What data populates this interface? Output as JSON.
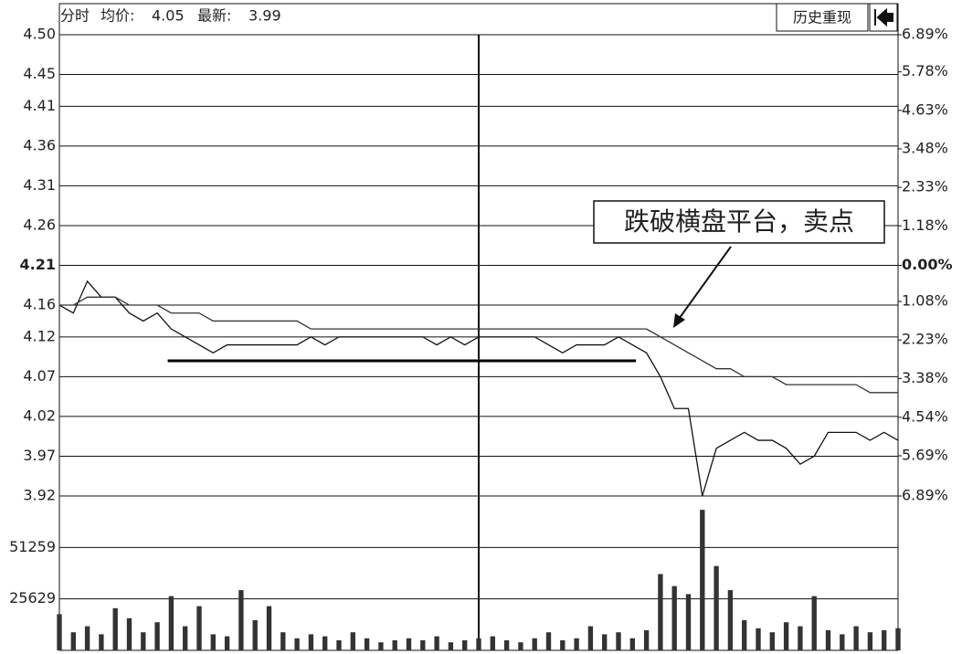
{
  "chart_data": {
    "type": "intraday",
    "title": "分时",
    "avg_label": "均价:",
    "avg": 4.05,
    "last_label": "最新:",
    "last": 3.99,
    "buttons": [
      "历史重现"
    ],
    "annotation": "跌破横盘平台，卖点",
    "ref_price": 4.21,
    "xlim": [
      0,
      240
    ],
    "xticks": [
      120
    ],
    "ylim": [
      3.92,
      4.5
    ],
    "yticks": [
      {
        "value": 4.5,
        "label": "4.50"
      },
      4.45,
      4.41,
      4.36,
      4.31,
      4.26,
      4.21,
      4.16,
      4.12,
      4.07,
      4.02,
      3.97,
      3.92
    ],
    "y2lim": [
      -6.89,
      6.89
    ],
    "y2ticks": [
      {
        "value": 6.89,
        "label": "6.89%"
      },
      {
        "value": 5.78,
        "label": "5.78%"
      },
      {
        "value": 4.63,
        "label": "4.63%"
      },
      {
        "value": 3.48,
        "label": "3.48%"
      },
      {
        "value": 2.33,
        "label": "2.33%"
      },
      {
        "value": 1.18,
        "label": "1.18%"
      },
      {
        "value": 0,
        "label": "0.00%"
      },
      {
        "value": -1.08,
        "label": "1.08%"
      },
      {
        "value": -2.23,
        "label": "2.23%"
      },
      {
        "value": -3.38,
        "label": "3.38%"
      },
      {
        "value": -4.54,
        "label": "4.54%"
      },
      {
        "value": -5.69,
        "label": "5.69%"
      },
      {
        "value": -6.89,
        "label": "6.89%"
      }
    ],
    "x": [
      0,
      4,
      8,
      12,
      16,
      20,
      24,
      28,
      32,
      36,
      40,
      44,
      48,
      52,
      56,
      60,
      64,
      68,
      72,
      76,
      80,
      84,
      88,
      92,
      96,
      100,
      104,
      108,
      112,
      116,
      120,
      124,
      128,
      132,
      136,
      140,
      144,
      148,
      152,
      156,
      160,
      164,
      168,
      172,
      176,
      180,
      184,
      188,
      192,
      196,
      200,
      204,
      208,
      212,
      216,
      220,
      224,
      228,
      232,
      236,
      240
    ],
    "series": [
      {
        "name": "price",
        "color": "#111",
        "values": [
          4.16,
          4.15,
          4.19,
          4.17,
          4.17,
          4.15,
          4.14,
          4.15,
          4.13,
          4.12,
          4.11,
          4.1,
          4.11,
          4.11,
          4.11,
          4.11,
          4.11,
          4.11,
          4.12,
          4.11,
          4.12,
          4.12,
          4.12,
          4.12,
          4.12,
          4.12,
          4.12,
          4.11,
          4.12,
          4.11,
          4.12,
          4.12,
          4.12,
          4.12,
          4.12,
          4.11,
          4.1,
          4.11,
          4.11,
          4.11,
          4.12,
          4.11,
          4.1,
          4.07,
          4.03,
          4.03,
          3.92,
          3.98,
          3.99,
          4.0,
          3.99,
          3.99,
          3.98,
          3.96,
          3.97,
          4.0,
          4.0,
          4.0,
          3.99,
          4.0,
          3.99
        ]
      },
      {
        "name": "average",
        "color": "#333",
        "values": [
          4.16,
          4.16,
          4.17,
          4.17,
          4.17,
          4.16,
          4.16,
          4.16,
          4.15,
          4.15,
          4.15,
          4.14,
          4.14,
          4.14,
          4.14,
          4.14,
          4.14,
          4.14,
          4.13,
          4.13,
          4.13,
          4.13,
          4.13,
          4.13,
          4.13,
          4.13,
          4.13,
          4.13,
          4.13,
          4.13,
          4.13,
          4.13,
          4.13,
          4.13,
          4.13,
          4.13,
          4.13,
          4.13,
          4.13,
          4.13,
          4.13,
          4.13,
          4.13,
          4.12,
          4.11,
          4.1,
          4.09,
          4.08,
          4.08,
          4.07,
          4.07,
          4.07,
          4.06,
          4.06,
          4.06,
          4.06,
          4.06,
          4.06,
          4.05,
          4.05,
          4.05
        ]
      }
    ],
    "platform_line": {
      "price": 4.09,
      "x_start": 31,
      "x_end": 165
    },
    "volume": {
      "ylim": [
        0,
        76888
      ],
      "yticks": [
        25629,
        51259
      ],
      "values": [
        18000,
        9000,
        12000,
        8000,
        21000,
        16000,
        9000,
        14000,
        27000,
        12000,
        22000,
        8000,
        7000,
        30000,
        15000,
        22000,
        9000,
        6000,
        8000,
        7000,
        5000,
        9000,
        6000,
        4000,
        5000,
        6000,
        5000,
        7000,
        4000,
        5000,
        6000,
        7000,
        5000,
        4000,
        6000,
        9000,
        5000,
        6000,
        12000,
        8000,
        9000,
        6000,
        10000,
        38000,
        32000,
        28000,
        70000,
        42000,
        30000,
        15000,
        11000,
        9000,
        14000,
        12000,
        27000,
        10000,
        8000,
        12000,
        9000,
        10000,
        11000
      ]
    }
  }
}
